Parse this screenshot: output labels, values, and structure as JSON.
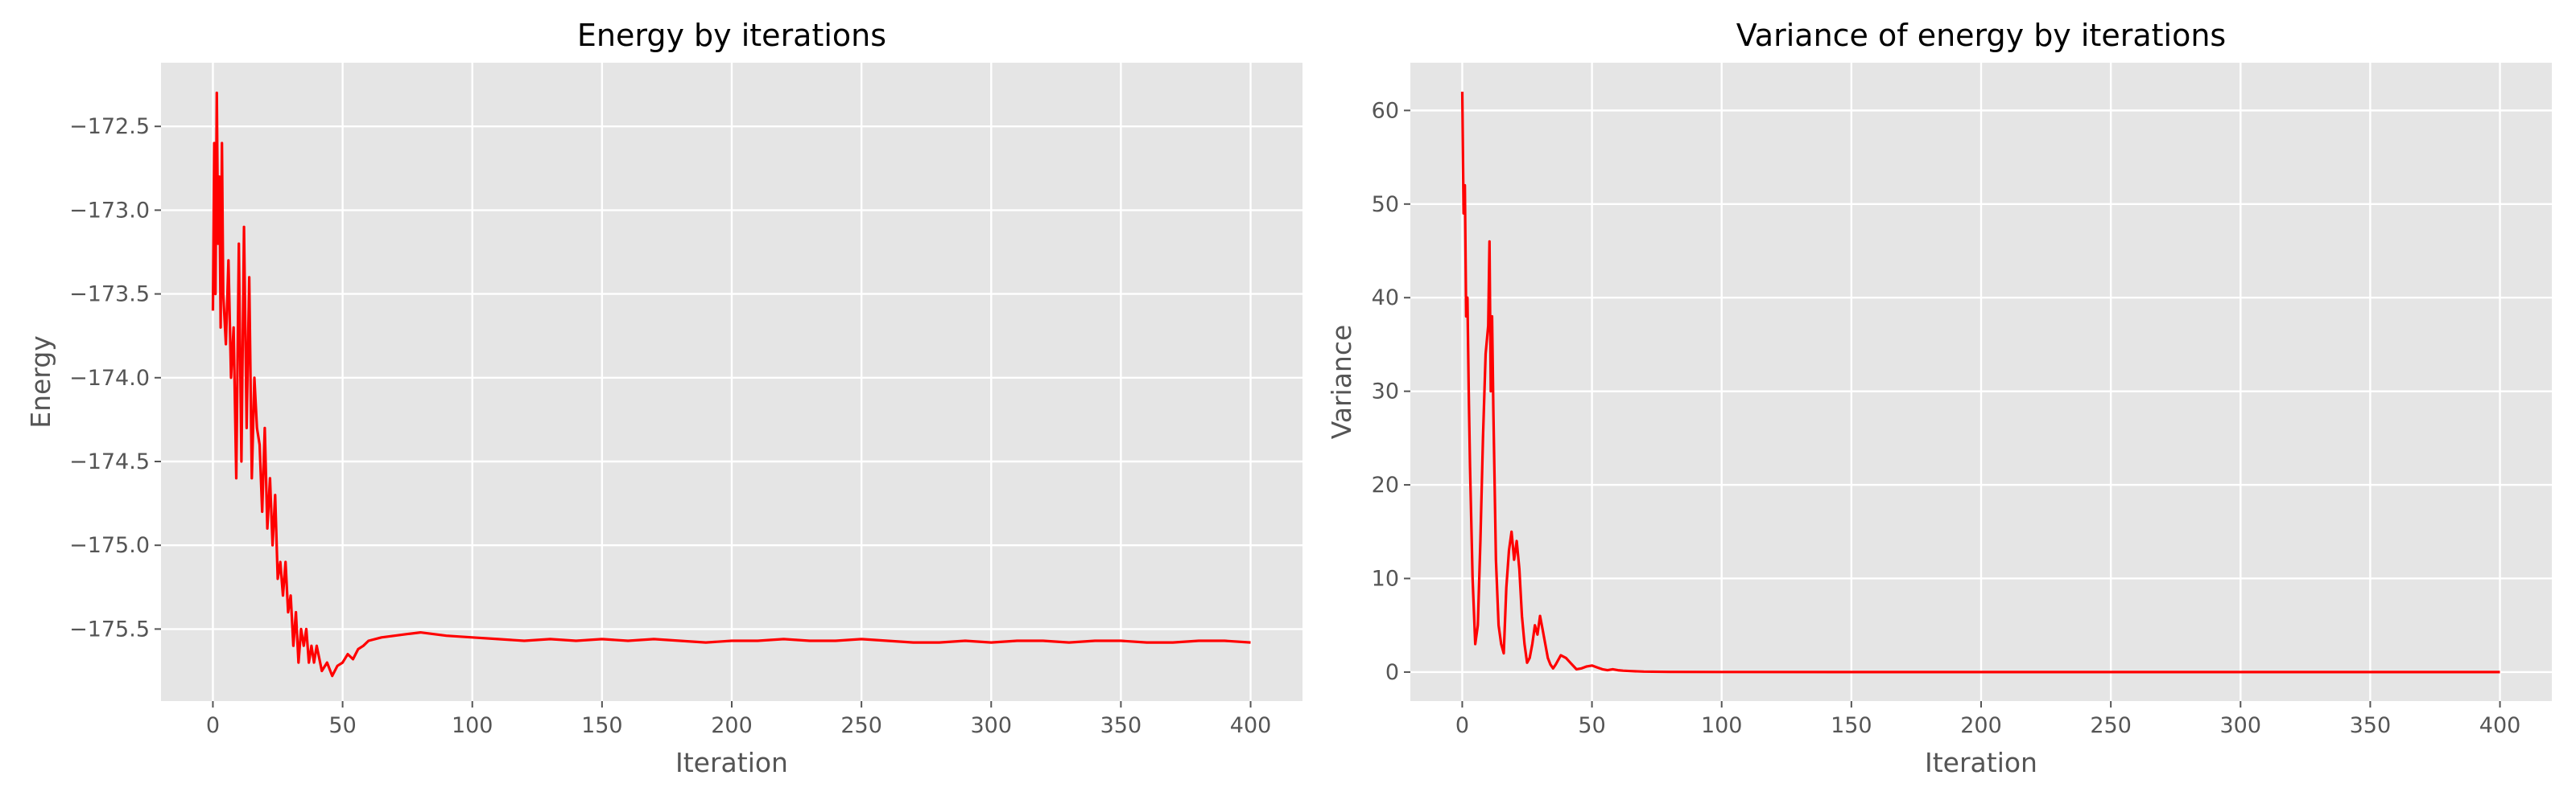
{
  "chart_data": [
    {
      "type": "line",
      "title": "Energy by iterations",
      "xlabel": "Iteration",
      "ylabel": "Energy",
      "xlim": [
        -20,
        420
      ],
      "ylim": [
        -175.93,
        -172.12
      ],
      "xticks": [
        0,
        50,
        100,
        150,
        200,
        250,
        300,
        350,
        400
      ],
      "xtick_labels": [
        "0",
        "50",
        "100",
        "150",
        "200",
        "250",
        "300",
        "350",
        "400"
      ],
      "yticks": [
        -175.5,
        -175.0,
        -174.5,
        -174.0,
        -173.5,
        -173.0,
        -172.5
      ],
      "ytick_labels": [
        "−175.5",
        "−175.0",
        "−174.5",
        "−174.0",
        "−173.5",
        "−173.0",
        "−172.5"
      ],
      "grid": true,
      "series": [
        {
          "name": "Energy",
          "color": "#ff0000",
          "x": [
            0,
            0.5,
            1,
            1.5,
            2,
            2.5,
            3,
            3.5,
            4,
            5,
            6,
            7,
            8,
            9,
            10,
            11,
            12,
            13,
            14,
            15,
            16,
            17,
            18,
            19,
            20,
            21,
            22,
            23,
            24,
            25,
            26,
            27,
            28,
            29,
            30,
            31,
            32,
            33,
            34,
            35,
            36,
            37,
            38,
            39,
            40,
            42,
            44,
            46,
            48,
            50,
            52,
            54,
            56,
            58,
            60,
            65,
            70,
            75,
            80,
            90,
            100,
            110,
            120,
            130,
            140,
            150,
            160,
            170,
            180,
            190,
            200,
            210,
            220,
            230,
            240,
            250,
            260,
            270,
            280,
            290,
            300,
            310,
            320,
            330,
            340,
            350,
            360,
            370,
            380,
            390,
            400
          ],
          "values": [
            -173.6,
            -172.6,
            -173.5,
            -172.3,
            -173.2,
            -172.8,
            -173.7,
            -172.6,
            -173.5,
            -173.8,
            -173.3,
            -174.0,
            -173.7,
            -174.6,
            -173.2,
            -174.5,
            -173.1,
            -174.3,
            -173.4,
            -174.6,
            -174.0,
            -174.3,
            -174.4,
            -174.8,
            -174.3,
            -174.9,
            -174.6,
            -175.0,
            -174.7,
            -175.2,
            -175.1,
            -175.3,
            -175.1,
            -175.4,
            -175.3,
            -175.6,
            -175.4,
            -175.7,
            -175.5,
            -175.6,
            -175.5,
            -175.7,
            -175.6,
            -175.7,
            -175.6,
            -175.75,
            -175.7,
            -175.78,
            -175.72,
            -175.7,
            -175.65,
            -175.68,
            -175.62,
            -175.6,
            -175.57,
            -175.55,
            -175.54,
            -175.53,
            -175.52,
            -175.54,
            -175.55,
            -175.56,
            -175.57,
            -175.56,
            -175.57,
            -175.56,
            -175.57,
            -175.56,
            -175.57,
            -175.58,
            -175.57,
            -175.57,
            -175.56,
            -175.57,
            -175.57,
            -175.56,
            -175.57,
            -175.58,
            -175.58,
            -175.57,
            -175.58,
            -175.57,
            -175.57,
            -175.58,
            -175.57,
            -175.57,
            -175.58,
            -175.58,
            -175.57,
            -175.57,
            -175.58
          ]
        }
      ]
    },
    {
      "type": "line",
      "title": "Variance of energy by iterations",
      "xlabel": "Iteration",
      "ylabel": "Variance",
      "xlim": [
        -20,
        420
      ],
      "ylim": [
        -3.1,
        65.1
      ],
      "xticks": [
        0,
        50,
        100,
        150,
        200,
        250,
        300,
        350,
        400
      ],
      "xtick_labels": [
        "0",
        "50",
        "100",
        "150",
        "200",
        "250",
        "300",
        "350",
        "400"
      ],
      "yticks": [
        0,
        10,
        20,
        30,
        40,
        50,
        60
      ],
      "ytick_labels": [
        "0",
        "10",
        "20",
        "30",
        "40",
        "50",
        "60"
      ],
      "grid": true,
      "series": [
        {
          "name": "Variance",
          "color": "#ff0000",
          "x": [
            0,
            0.5,
            1,
            1.5,
            2,
            2.5,
            3,
            4,
            5,
            6,
            7,
            8,
            9,
            10,
            10.5,
            11,
            11.5,
            12,
            13,
            14,
            15,
            16,
            17,
            18,
            19,
            20,
            21,
            22,
            23,
            24,
            25,
            26,
            27,
            28,
            29,
            30,
            31,
            32,
            33,
            34,
            35,
            36,
            38,
            40,
            42,
            44,
            46,
            48,
            50,
            52,
            54,
            56,
            58,
            60,
            62,
            65,
            70,
            80,
            100,
            150,
            200,
            250,
            300,
            350,
            400
          ],
          "values": [
            62,
            49,
            52,
            38,
            40,
            30,
            22,
            10,
            3,
            5,
            14,
            25,
            34,
            37,
            46,
            30,
            38,
            28,
            12,
            5,
            3,
            2,
            9,
            13,
            15,
            12,
            14,
            11,
            6,
            3,
            1,
            1.5,
            3,
            5,
            4,
            6,
            4.5,
            3,
            1.5,
            0.8,
            0.4,
            0.8,
            1.8,
            1.5,
            0.9,
            0.3,
            0.4,
            0.6,
            0.7,
            0.5,
            0.3,
            0.2,
            0.3,
            0.2,
            0.15,
            0.1,
            0.05,
            0.02,
            0.01,
            0.005,
            0.003,
            0.003,
            0.002,
            0.002,
            0.002
          ]
        }
      ]
    }
  ]
}
